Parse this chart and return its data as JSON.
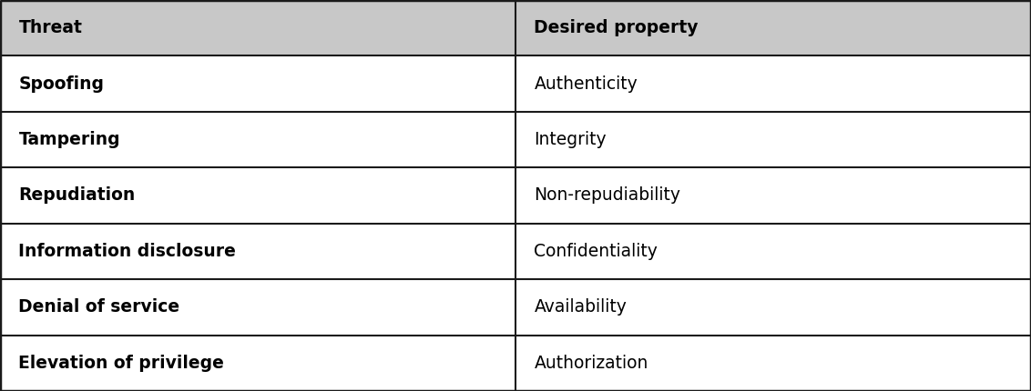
{
  "headers": [
    "Threat",
    "Desired property"
  ],
  "rows": [
    [
      "Spoofing",
      "Authenticity"
    ],
    [
      "Tampering",
      "Integrity"
    ],
    [
      "Repudiation",
      "Non-repudiability"
    ],
    [
      "Information disclosure",
      "Confidentiality"
    ],
    [
      "Denial of service",
      "Availability"
    ],
    [
      "Elevation of privilege",
      "Authorization"
    ]
  ],
  "header_bg": "#c8c8c8",
  "row_bg": "#ffffff",
  "border_color": "#1a1a1a",
  "text_color": "#000000",
  "header_fontsize": 13.5,
  "row_fontsize": 13.5,
  "col_split": 0.5,
  "outer_border_lw": 2.5,
  "inner_border_lw": 1.5,
  "fig_width": 11.32,
  "fig_height": 4.3
}
